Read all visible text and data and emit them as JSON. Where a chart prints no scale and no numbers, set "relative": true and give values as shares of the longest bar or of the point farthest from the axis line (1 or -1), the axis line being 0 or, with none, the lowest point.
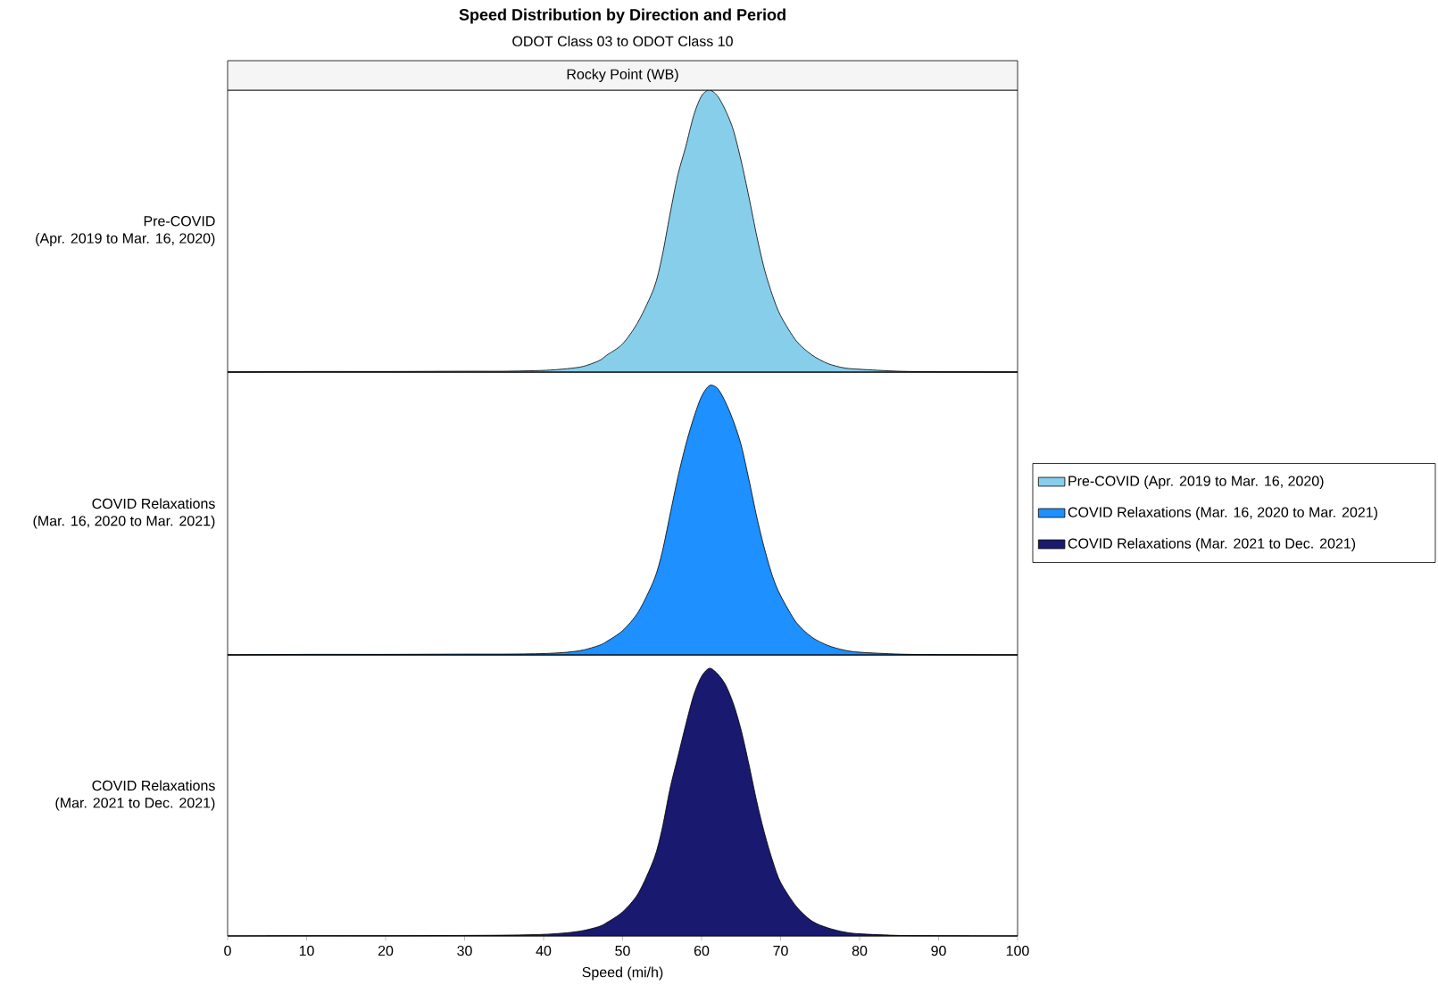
{
  "chart_data": [
    {
      "type": "area",
      "title": "Speed Distribution by Direction and Period",
      "subtitle": "ODOT Class 03 to ODOT Class 10",
      "ylabel": "Pre-COVID",
      "annotations": [
        "(Apr. 2019 to Mar. 16, 2020)",
        "Rocky Point (WB)"
      ],
      "relative": true,
      "xlim": [
        0,
        100
      ],
      "tick_labels": false,
      "legend": "right",
      "x": [
        0,
        10,
        20,
        30,
        35,
        40,
        43,
        45,
        47,
        48,
        50,
        52,
        54,
        55,
        56,
        57,
        58,
        59,
        60,
        61,
        62,
        63,
        64,
        65,
        66,
        67,
        68,
        69,
        70,
        72,
        74,
        76,
        78,
        80,
        85,
        90,
        100
      ],
      "series": [
        {
          "name": "Pre-COVID (Apr. 2019 to Mar. 16, 2020)",
          "color": "#87ceeb",
          "values": [
            0,
            0.002,
            0.002,
            0.003,
            0.003,
            0.006,
            0.012,
            0.02,
            0.04,
            0.06,
            0.1,
            0.18,
            0.3,
            0.41,
            0.56,
            0.7,
            0.8,
            0.91,
            0.98,
            1.0,
            0.98,
            0.93,
            0.86,
            0.75,
            0.62,
            0.48,
            0.36,
            0.27,
            0.2,
            0.11,
            0.06,
            0.03,
            0.015,
            0.01,
            0.003,
            0.001,
            0
          ]
        }
      ]
    },
    {
      "type": "area",
      "ylabel": "COVID Relaxations",
      "annotations": [
        "(Mar. 16, 2020 to Mar. 2021)"
      ],
      "relative": true,
      "xlim": [
        0,
        100
      ],
      "tick_labels": false,
      "legend": "right",
      "x": [
        0,
        10,
        20,
        30,
        35,
        40,
        43,
        45,
        47,
        48,
        50,
        52,
        54,
        55,
        56,
        57,
        58,
        59,
        60,
        61,
        62,
        63,
        64,
        65,
        66,
        67,
        68,
        69,
        70,
        72,
        74,
        76,
        78,
        80,
        85,
        90,
        100
      ],
      "series": [
        {
          "name": "COVID Relaxations (Mar. 16, 2020 to Mar. 2021)",
          "color": "#1e90ff",
          "values": [
            0,
            0.002,
            0.002,
            0.003,
            0.003,
            0.005,
            0.01,
            0.018,
            0.035,
            0.05,
            0.09,
            0.16,
            0.28,
            0.38,
            0.52,
            0.66,
            0.78,
            0.88,
            0.96,
            1.0,
            0.99,
            0.94,
            0.87,
            0.78,
            0.65,
            0.51,
            0.39,
            0.29,
            0.22,
            0.12,
            0.065,
            0.035,
            0.018,
            0.01,
            0.003,
            0.001,
            0
          ]
        }
      ]
    },
    {
      "type": "area",
      "ylabel": "COVID Relaxations",
      "annotations": [
        "(Mar. 2021 to Dec. 2021)"
      ],
      "xlabel": "Speed (mi/h)",
      "relative": true,
      "xlim": [
        0,
        100
      ],
      "xticks": [
        0,
        10,
        20,
        30,
        40,
        50,
        60,
        70,
        80,
        90,
        100
      ],
      "tick_labels": "x",
      "legend": "right",
      "x": [
        0,
        10,
        20,
        30,
        35,
        40,
        43,
        45,
        47,
        48,
        50,
        52,
        54,
        55,
        56,
        57,
        58,
        59,
        60,
        61,
        62,
        63,
        64,
        65,
        66,
        67,
        68,
        69,
        70,
        72,
        74,
        76,
        78,
        80,
        85,
        90,
        100
      ],
      "series": [
        {
          "name": "COVID Relaxations (Mar. 2021 to Dec. 2021)",
          "color": "#191970",
          "values": [
            0,
            0.001,
            0.001,
            0.002,
            0.003,
            0.006,
            0.012,
            0.02,
            0.035,
            0.05,
            0.09,
            0.16,
            0.29,
            0.4,
            0.55,
            0.67,
            0.79,
            0.9,
            0.97,
            1.0,
            0.98,
            0.94,
            0.87,
            0.77,
            0.64,
            0.5,
            0.38,
            0.28,
            0.2,
            0.11,
            0.055,
            0.03,
            0.015,
            0.008,
            0.002,
            0.001,
            0
          ]
        }
      ]
    }
  ]
}
